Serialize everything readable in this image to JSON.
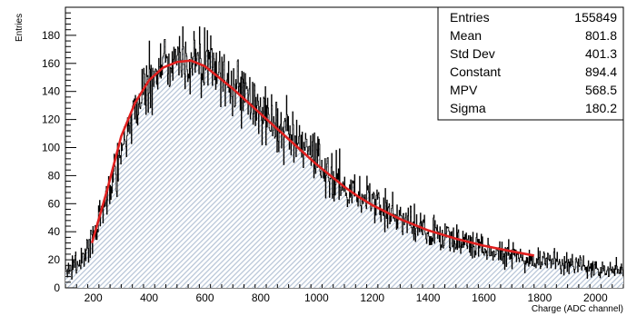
{
  "chart_data": {
    "type": "histogram",
    "title": "",
    "xlabel": "Charge (ADC channel)",
    "ylabel": "Entries",
    "xlim": [
      100,
      2100
    ],
    "ylim": [
      0,
      200
    ],
    "x_ticks": [
      200,
      400,
      600,
      800,
      1000,
      1200,
      1400,
      1600,
      1800,
      2000
    ],
    "y_ticks": [
      0,
      20,
      40,
      60,
      80,
      100,
      120,
      140,
      160,
      180
    ],
    "grid": false,
    "legend": "none",
    "colors": {
      "histogram_line": "#000000",
      "histogram_fill": "#b5c3d6",
      "fit_line": "#e0201f"
    },
    "histogram_envelope": {
      "x": [
        100,
        150,
        200,
        250,
        300,
        350,
        400,
        450,
        500,
        550,
        600,
        650,
        700,
        750,
        800,
        850,
        900,
        950,
        1000,
        1050,
        1100,
        1150,
        1200,
        1300,
        1400,
        1500,
        1600,
        1700,
        1800,
        1900,
        2000,
        2100
      ],
      "y": [
        12,
        18,
        35,
        65,
        100,
        128,
        148,
        160,
        164,
        163,
        160,
        153,
        146,
        137,
        127,
        118,
        108,
        99,
        90,
        82,
        74,
        67,
        61,
        50,
        41,
        34,
        28,
        24,
        20,
        17,
        15,
        13
      ]
    },
    "series": [
      {
        "type": "fit-line",
        "x": [
          195,
          250,
          300,
          350,
          400,
          450,
          500,
          550,
          600,
          650,
          700,
          750,
          800,
          850,
          900,
          950,
          1000,
          1050,
          1100,
          1150,
          1200,
          1300,
          1400,
          1500,
          1600,
          1700,
          1780
        ],
        "y": [
          32,
          70,
          108,
          132,
          148,
          157,
          161,
          162,
          158,
          150,
          142,
          133,
          124,
          115,
          106,
          97,
          88,
          80,
          72,
          65,
          59,
          49,
          41,
          35,
          30,
          26,
          23
        ]
      }
    ],
    "stats_box": {
      "rows": [
        {
          "label": "Entries",
          "value": "155849"
        },
        {
          "label": "Mean",
          "value": "801.8"
        },
        {
          "label": "Std Dev",
          "value": "401.3"
        },
        {
          "label": "Constant",
          "value": "894.4"
        },
        {
          "label": "MPV",
          "value": "568.5"
        },
        {
          "label": "Sigma",
          "value": "180.2"
        }
      ]
    }
  }
}
